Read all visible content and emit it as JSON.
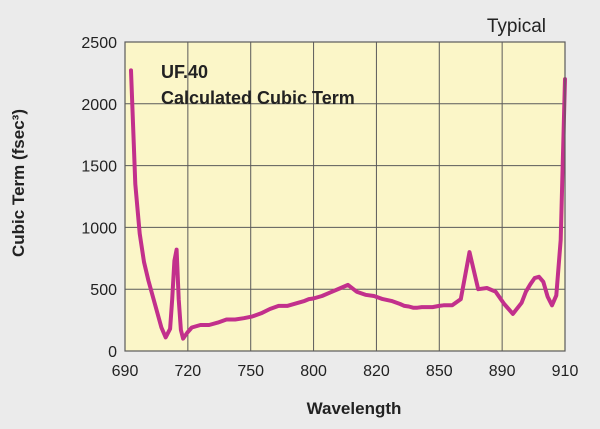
{
  "chart_data": {
    "type": "line",
    "corner_label": "Typical",
    "title_lines": [
      "UF.40",
      "Calculated Cubic Term"
    ],
    "xlabel": "Wavelength",
    "ylabel": "Cubic Term (fsec³)",
    "y_ticks": [
      0,
      500,
      1000,
      1500,
      2000,
      2500
    ],
    "y_tick_labels": [
      "0",
      "500",
      "1000",
      "1500",
      "2000",
      "2500"
    ],
    "ylim": [
      0,
      2500
    ],
    "x_tick_labels": [
      "690",
      "720",
      "750",
      "800",
      "820",
      "850",
      "890",
      "910"
    ],
    "grid": true,
    "colors": {
      "plot_bg": "#fbf6c8",
      "line": "#c2308c",
      "grid": "#5a5a5a",
      "page_bg": "#ebebeb"
    },
    "series": [
      {
        "x_fraction": [
          0.0,
          0.01,
          0.02,
          0.03,
          0.04,
          0.055,
          0.07,
          0.08,
          0.09,
          0.095,
          0.1,
          0.105,
          0.11,
          0.115,
          0.12,
          0.13,
          0.14,
          0.16,
          0.18,
          0.2,
          0.22,
          0.24,
          0.26,
          0.28,
          0.3,
          0.32,
          0.34,
          0.36,
          0.38,
          0.4,
          0.41,
          0.42,
          0.44,
          0.46,
          0.48,
          0.5,
          0.52,
          0.54,
          0.56,
          0.58,
          0.6,
          0.62,
          0.63,
          0.64,
          0.65,
          0.66,
          0.67,
          0.68,
          0.695,
          0.71,
          0.72,
          0.74,
          0.76,
          0.78,
          0.8,
          0.82,
          0.84,
          0.86,
          0.87,
          0.88,
          0.9,
          0.91,
          0.92,
          0.93,
          0.94,
          0.95,
          0.96,
          0.97,
          0.98,
          0.99,
          1.0
        ],
        "values": [
          2270,
          1350,
          950,
          720,
          570,
          380,
          190,
          110,
          180,
          420,
          730,
          820,
          420,
          170,
          100,
          150,
          190,
          210,
          210,
          230,
          255,
          255,
          265,
          280,
          305,
          340,
          365,
          365,
          385,
          405,
          420,
          425,
          445,
          475,
          505,
          535,
          480,
          455,
          445,
          420,
          405,
          380,
          365,
          360,
          350,
          350,
          355,
          355,
          355,
          365,
          370,
          370,
          420,
          800,
          500,
          510,
          480,
          380,
          340,
          300,
          390,
          480,
          540,
          590,
          600,
          560,
          440,
          370,
          450,
          900,
          2200
        ]
      }
    ]
  }
}
